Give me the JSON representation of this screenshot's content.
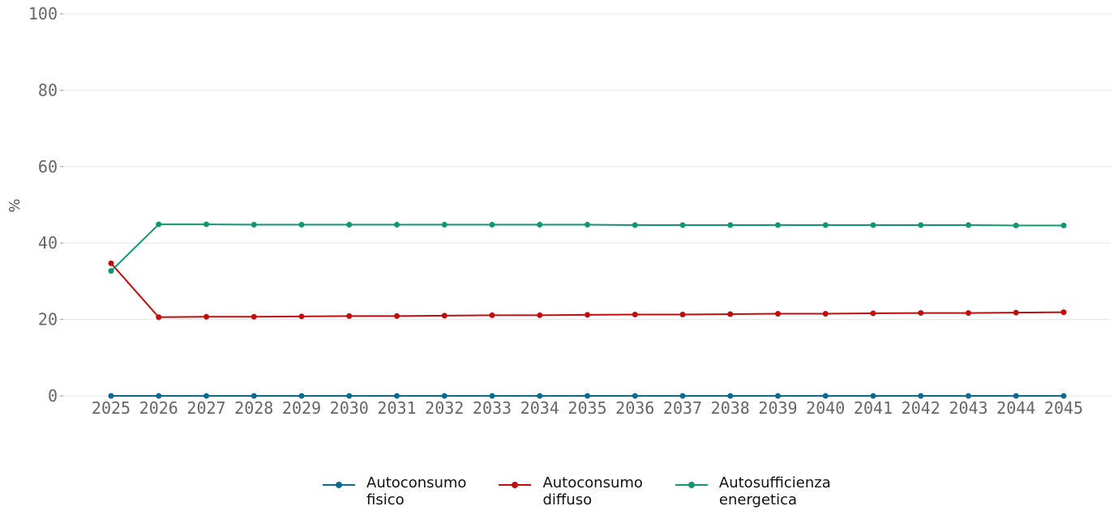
{
  "chart_data": {
    "type": "line",
    "title": "",
    "xlabel": "",
    "ylabel": "%",
    "ylim": [
      0,
      100
    ],
    "yticks": [
      "0",
      "20",
      "40",
      "60",
      "80",
      "100"
    ],
    "grid": true,
    "legend_position": "bottom-center",
    "x": [
      "2025",
      "2026",
      "2027",
      "2028",
      "2029",
      "2030",
      "2031",
      "2032",
      "2033",
      "2034",
      "2035",
      "2036",
      "2037",
      "2038",
      "2039",
      "2040",
      "2041",
      "2042",
      "2043",
      "2044",
      "2045"
    ],
    "series": [
      {
        "name": "Autoconsumo fisico",
        "name_lines": [
          "Autoconsumo",
          "fisico"
        ],
        "color": "#0b6a8f",
        "values": [
          0,
          0,
          0,
          0,
          0,
          0,
          0,
          0,
          0,
          0,
          0,
          0,
          0,
          0,
          0,
          0,
          0,
          0,
          0,
          0,
          0
        ]
      },
      {
        "name": "Autoconsumo diffuso",
        "name_lines": [
          "Autoconsumo",
          "diffuso"
        ],
        "color": "#c00d0d",
        "values": [
          34.7,
          20.6,
          20.7,
          20.7,
          20.8,
          20.9,
          20.9,
          21.0,
          21.1,
          21.1,
          21.2,
          21.3,
          21.3,
          21.4,
          21.5,
          21.5,
          21.6,
          21.7,
          21.7,
          21.8,
          21.9
        ]
      },
      {
        "name": "Autosufficienza energetica",
        "name_lines": [
          "Autosufficienza",
          "energetica"
        ],
        "color": "#0e9770",
        "values": [
          32.7,
          44.9,
          44.9,
          44.8,
          44.8,
          44.8,
          44.8,
          44.8,
          44.8,
          44.8,
          44.8,
          44.7,
          44.7,
          44.7,
          44.7,
          44.7,
          44.7,
          44.7,
          44.7,
          44.6,
          44.6
        ]
      }
    ]
  }
}
